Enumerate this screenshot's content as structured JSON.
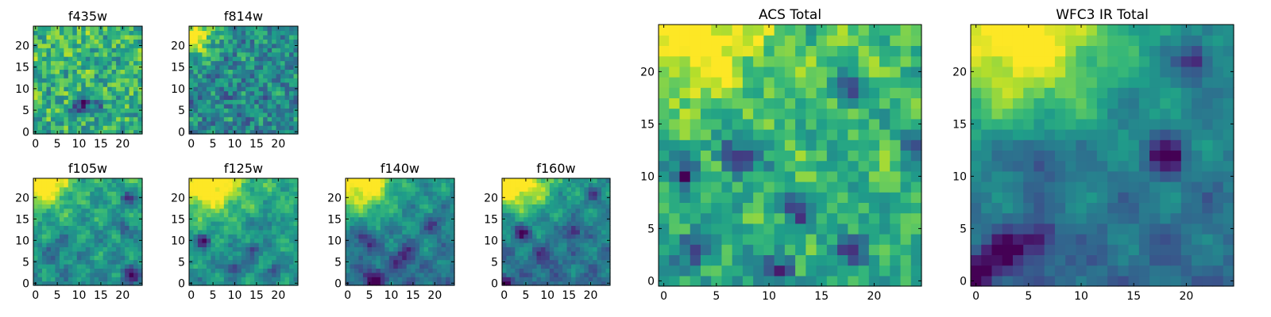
{
  "colormap": "viridis",
  "colormap_stops": [
    "#440154",
    "#482878",
    "#3e4989",
    "#31688e",
    "#26828e",
    "#1f9e89",
    "#35b779",
    "#6ece58",
    "#b5de2b",
    "#fde725"
  ],
  "chart_data": [
    {
      "type": "heatmap",
      "title": "f435w",
      "xticks": [
        "0",
        "5",
        "10",
        "15",
        "20"
      ],
      "yticks": [
        "0",
        "5",
        "10",
        "15",
        "20"
      ],
      "xlim": [
        0,
        24
      ],
      "ylim": [
        0,
        24
      ],
      "grid": false,
      "field": {
        "mean": 0.62,
        "contrast": 0.08,
        "noise": 0.42,
        "gradient": 0.04,
        "blobs": [],
        "holes": [
          [
            10,
            5,
            1.2,
            0.4
          ],
          [
            11,
            7,
            1.2,
            0.35
          ],
          [
            14,
            6,
            1.2,
            0.3
          ]
        ],
        "seed": 11
      }
    },
    {
      "type": "heatmap",
      "title": "f814w",
      "xticks": [
        "0",
        "5",
        "10",
        "15",
        "20"
      ],
      "yticks": [
        "0",
        "5",
        "10",
        "15",
        "20"
      ],
      "xlim": [
        0,
        24
      ],
      "ylim": [
        0,
        24
      ],
      "grid": false,
      "field": {
        "mean": 0.45,
        "contrast": 0.1,
        "noise": 0.38,
        "gradient": 0.05,
        "blobs": [
          [
            1,
            22,
            3,
            0.5
          ]
        ],
        "holes": [],
        "seed": 23
      }
    },
    {
      "type": "heatmap",
      "title": "f105w",
      "xticks": [
        "0",
        "5",
        "10",
        "15",
        "20"
      ],
      "yticks": [
        "0",
        "5",
        "10",
        "15",
        "20"
      ],
      "xlim": [
        0,
        24
      ],
      "ylim": [
        0,
        24
      ],
      "grid": false,
      "field": {
        "mean": 0.48,
        "contrast": 0.12,
        "noise": 0.18,
        "gradient": 0.12,
        "blobs": [
          [
            2,
            24,
            4,
            0.55
          ]
        ],
        "holes": [
          [
            21,
            20,
            1.2,
            0.35
          ],
          [
            20,
            13,
            1.2,
            0.3
          ],
          [
            22,
            2,
            1.4,
            0.45
          ],
          [
            5,
            8,
            2,
            0.15
          ]
        ],
        "seed": 37
      }
    },
    {
      "type": "heatmap",
      "title": "f125w",
      "xticks": [
        "0",
        "5",
        "10",
        "15",
        "20"
      ],
      "yticks": [
        "0",
        "5",
        "10",
        "15",
        "20"
      ],
      "xlim": [
        0,
        24
      ],
      "ylim": [
        0,
        24
      ],
      "grid": false,
      "field": {
        "mean": 0.5,
        "contrast": 0.12,
        "noise": 0.16,
        "gradient": 0.12,
        "blobs": [
          [
            4,
            24,
            5,
            0.55
          ]
        ],
        "holes": [
          [
            3,
            10,
            1.2,
            0.45
          ],
          [
            10,
            4,
            1.4,
            0.35
          ],
          [
            14,
            8,
            1.2,
            0.35
          ],
          [
            19,
            3,
            1.2,
            0.3
          ],
          [
            17,
            14,
            1.2,
            0.3
          ]
        ],
        "seed": 41
      }
    },
    {
      "type": "heatmap",
      "title": "f140w",
      "xticks": [
        "0",
        "5",
        "10",
        "15",
        "20"
      ],
      "yticks": [
        "0",
        "5",
        "10",
        "15",
        "20"
      ],
      "xlim": [
        0,
        24
      ],
      "ylim": [
        0,
        24
      ],
      "grid": false,
      "field": {
        "mean": 0.38,
        "contrast": 0.12,
        "noise": 0.15,
        "gradient": 0.15,
        "blobs": [
          [
            3,
            24,
            5,
            0.6
          ]
        ],
        "holes": [
          [
            4,
            10,
            2,
            0.3
          ],
          [
            6,
            1,
            2,
            0.35
          ],
          [
            13,
            6,
            2,
            0.3
          ],
          [
            20,
            14,
            1.5,
            0.25
          ]
        ],
        "seed": 53
      }
    },
    {
      "type": "heatmap",
      "title": "f160w",
      "xticks": [
        "0",
        "5",
        "10",
        "15",
        "20"
      ],
      "yticks": [
        "0",
        "5",
        "10",
        "15",
        "20"
      ],
      "xlim": [
        0,
        24
      ],
      "ylim": [
        0,
        24
      ],
      "grid": false,
      "field": {
        "mean": 0.36,
        "contrast": 0.12,
        "noise": 0.15,
        "gradient": 0.16,
        "blobs": [
          [
            3,
            24,
            5,
            0.62
          ]
        ],
        "holes": [
          [
            4,
            12,
            1.2,
            0.45
          ],
          [
            16,
            12,
            1.2,
            0.45
          ],
          [
            0,
            0,
            1.2,
            0.5
          ],
          [
            9,
            6,
            2,
            0.2
          ],
          [
            21,
            21,
            1.2,
            0.3
          ]
        ],
        "seed": 67
      }
    },
    {
      "type": "heatmap",
      "title": "ACS Total",
      "xticks": [
        "0",
        "5",
        "10",
        "15",
        "20"
      ],
      "yticks": [
        "0",
        "5",
        "10",
        "15",
        "20"
      ],
      "xlim": [
        0,
        24
      ],
      "ylim": [
        0,
        24
      ],
      "grid": false,
      "field": {
        "mean": 0.6,
        "contrast": 0.1,
        "noise": 0.3,
        "gradient": 0.1,
        "blobs": [
          [
            3,
            24,
            4,
            0.45
          ]
        ],
        "holes": [
          [
            7,
            12,
            1.2,
            0.5
          ],
          [
            2,
            10,
            1,
            0.45
          ],
          [
            18,
            18,
            1,
            0.45
          ],
          [
            13,
            7,
            1,
            0.4
          ],
          [
            11,
            1,
            1,
            0.45
          ],
          [
            18,
            3,
            1,
            0.4
          ],
          [
            3,
            3,
            1,
            0.4
          ],
          [
            24,
            13,
            1,
            0.4
          ]
        ],
        "seed": 79
      }
    },
    {
      "type": "heatmap",
      "title": "WFC3 IR Total",
      "xticks": [
        "0",
        "5",
        "10",
        "15",
        "20"
      ],
      "yticks": [
        "0",
        "5",
        "10",
        "15",
        "20"
      ],
      "xlim": [
        0,
        24
      ],
      "ylim": [
        0,
        24
      ],
      "grid": false,
      "field": {
        "mean": 0.34,
        "contrast": 0.1,
        "noise": 0.1,
        "gradient": 0.16,
        "blobs": [
          [
            4,
            24,
            6,
            0.6
          ]
        ],
        "holes": [
          [
            21,
            21,
            1.2,
            0.4
          ],
          [
            18,
            12,
            1.2,
            0.45
          ],
          [
            6,
            4,
            1.2,
            0.35
          ],
          [
            3,
            3,
            1.2,
            0.4
          ],
          [
            0,
            1,
            1.2,
            0.45
          ],
          [
            6,
            12,
            1.5,
            0.3
          ]
        ],
        "seed": 97
      }
    }
  ]
}
